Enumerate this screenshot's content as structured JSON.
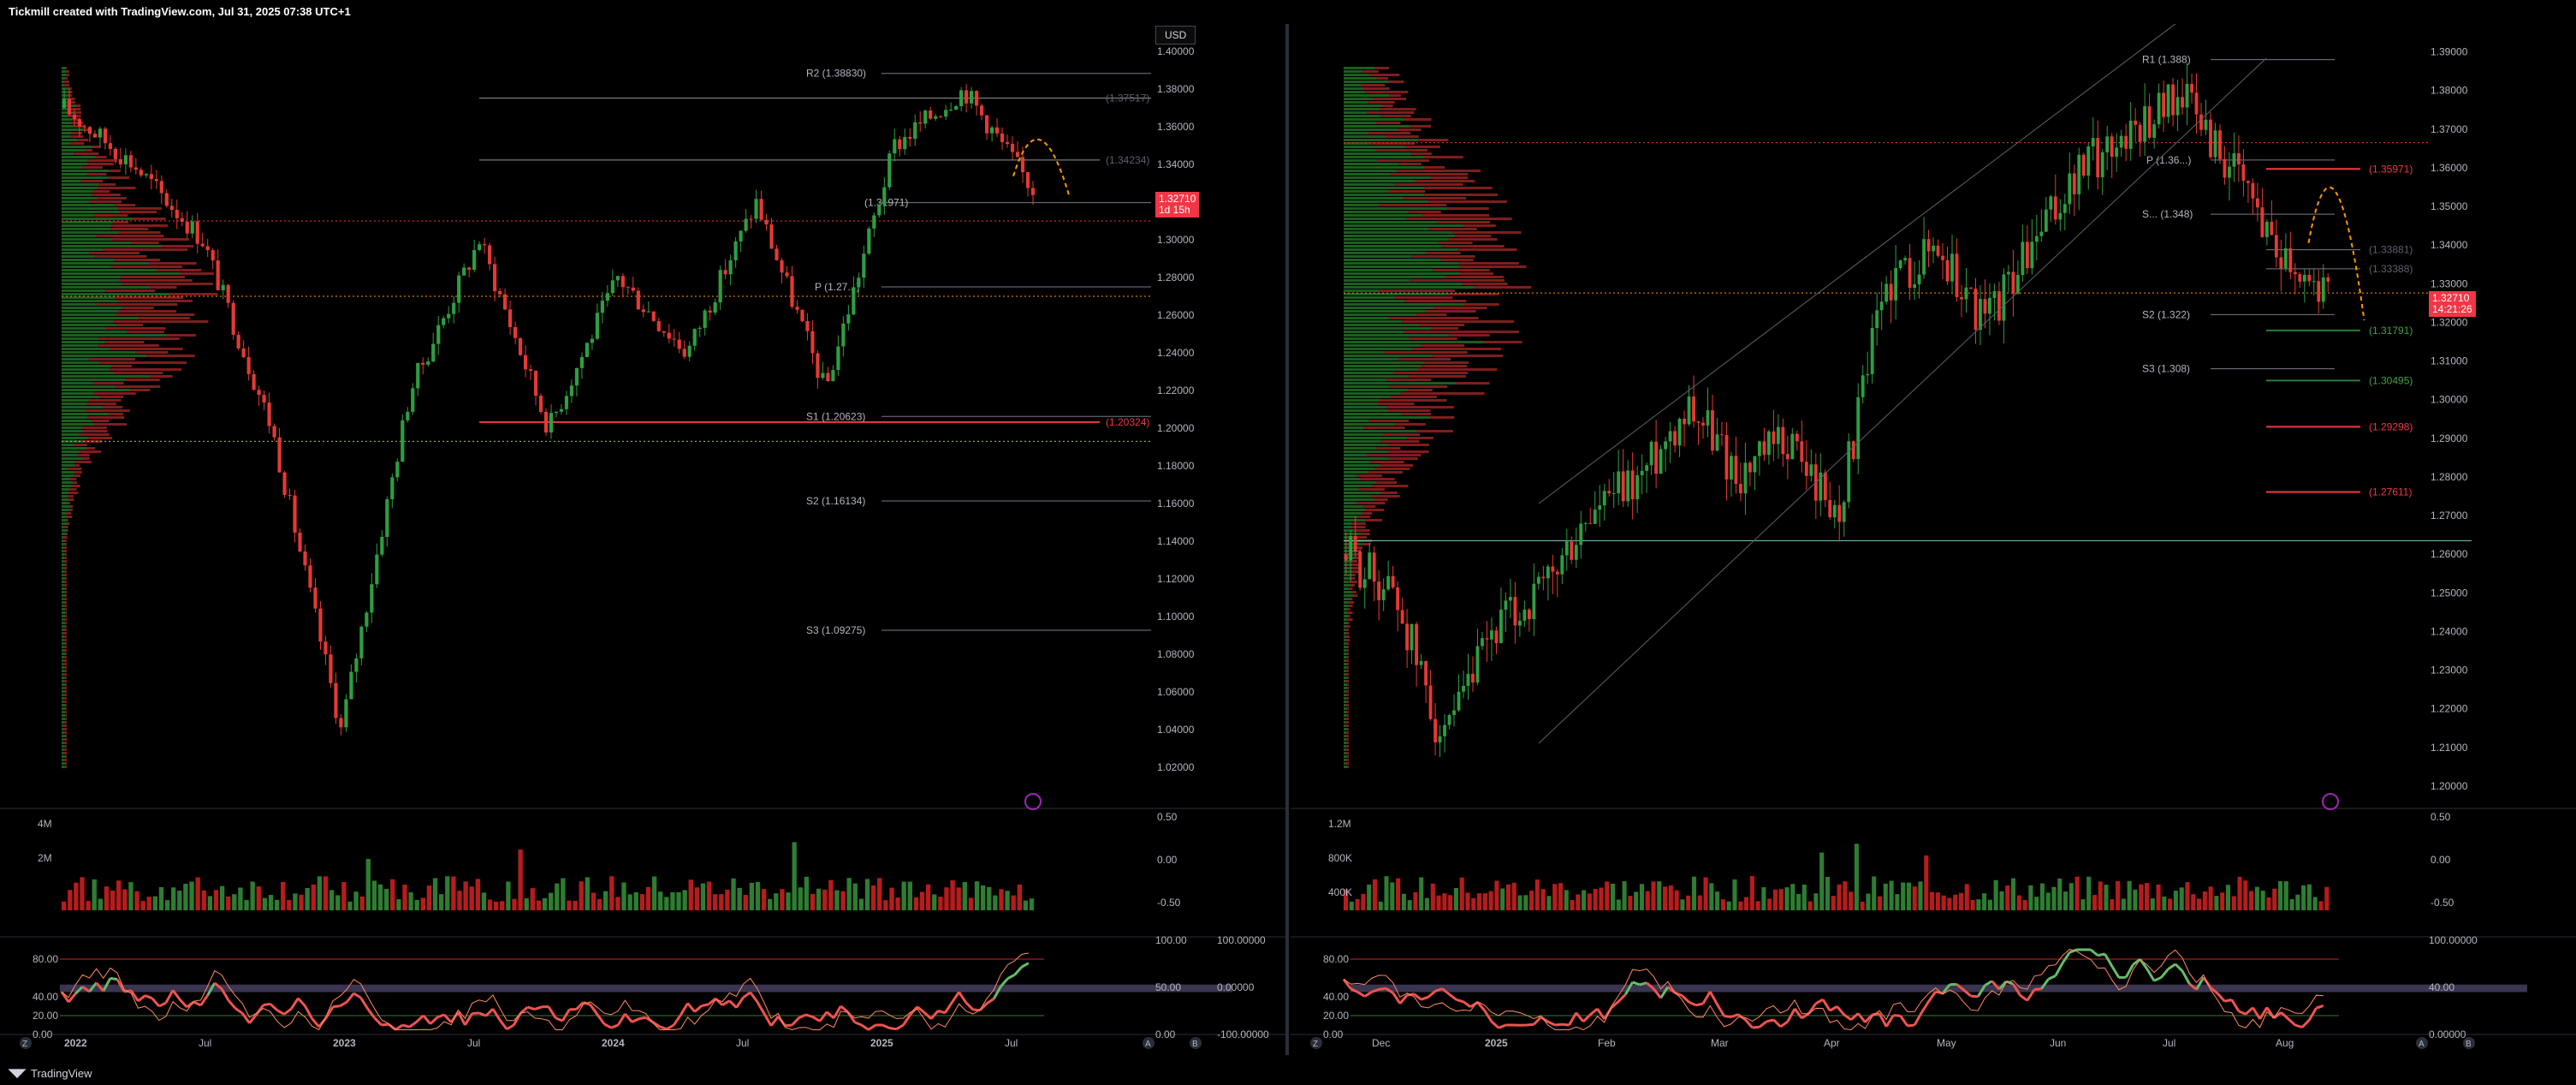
{
  "header": {
    "caption": "Tickmill created with TradingView.com, Jul 31, 2025 07:38 UTC+1"
  },
  "footer": {
    "brand": "TradingView"
  },
  "colors": {
    "up": "#26a69a",
    "upGreen": "#2e7d32",
    "down": "#c62828",
    "bg": "#000000",
    "grid": "#1a1a1a",
    "label": "#b2b5be",
    "red": "#f23645",
    "orange": "#ff9800"
  },
  "left_panel": {
    "currency_button": "USD",
    "price_tag": {
      "price": "1.32710",
      "countdown": "1d 15h"
    },
    "price_axis": [
      "1.40000",
      "1.38000",
      "1.36000",
      "1.34000",
      "1.30000",
      "1.28000",
      "1.26000",
      "1.24000",
      "1.22000",
      "1.20000",
      "1.18000",
      "1.16000",
      "1.14000",
      "1.12000",
      "1.10000",
      "1.08000",
      "1.06000",
      "1.04000",
      "1.02000"
    ],
    "pivot_labels": [
      "R2 (1.38830)",
      "(1.37517)",
      "(1.34234)",
      "P (1.27...)",
      "S1 (1.20623)",
      "(1.20324)",
      "S2 (1.16134)",
      "S3 (1.09275)"
    ],
    "r1_label_partial": "(1.31971)",
    "time_axis": [
      "2022",
      "Jul",
      "2023",
      "Jul",
      "2024",
      "Jul",
      "2025",
      "Jul"
    ],
    "volume_axis": [
      "4M",
      "2M"
    ],
    "volume_right_axis": [
      "0.50",
      "0.00",
      "-0.50"
    ],
    "osc_axis_left": [
      "80.00",
      "40.00",
      "20.00",
      "0.00"
    ],
    "osc_axis_right_a": [
      "100.00",
      "50.00",
      "0.00"
    ],
    "osc_axis_right_b": [
      "100.00000",
      "0.00000",
      "-100.00000"
    ],
    "axis_buttons": [
      "Z",
      "A",
      "B"
    ]
  },
  "right_panel": {
    "price_tag": {
      "price": "1.32710",
      "countdown": "14:21:26"
    },
    "price_axis": [
      "1.39000",
      "1.38000",
      "1.37000",
      "1.36000",
      "1.35000",
      "1.34000",
      "1.33000",
      "1.32000",
      "1.31000",
      "1.30000",
      "1.29000",
      "1.28000",
      "1.27000",
      "1.26000",
      "1.25000",
      "1.24000",
      "1.23000",
      "1.22000",
      "1.21000",
      "1.20000"
    ],
    "pivot_labels": [
      "R1 (1.388)",
      "P (1.36...)",
      "S... (1.348)",
      "S2 (1.322)",
      "S3 (1.308)"
    ],
    "right_labels": [
      "(1.35971)",
      "(1.33881)",
      "(1.33388)",
      "(1.31791)",
      "(1.30495)",
      "(1.29298)",
      "(1.27611)"
    ],
    "time_axis": [
      "Dec",
      "2025",
      "Feb",
      "Mar",
      "Apr",
      "May",
      "Jun",
      "Jul",
      "Aug"
    ],
    "volume_axis": [
      "1.2M",
      "800K",
      "400K"
    ],
    "volume_right_axis": [
      "0.50",
      "0.00",
      "-0.50"
    ],
    "osc_axis_left": [
      "80.00",
      "40.00",
      "20.00",
      "0.00"
    ],
    "osc_axis_right_a": [
      "100.00000",
      "40.00",
      "0.00000",
      "-100.00000"
    ],
    "axis_buttons": [
      "Z",
      "A",
      "B"
    ]
  },
  "chart_data": [
    {
      "type": "candlestick",
      "title": "",
      "ylim": [
        1.01,
        1.41
      ],
      "x_ticks": [
        "2022",
        "Jul",
        "2023",
        "Jul",
        "2024",
        "Jul",
        "2025",
        "Jul"
      ],
      "levels": [
        {
          "label": "R2",
          "value": 1.3883
        },
        {
          "label": "R1",
          "value": 1.31971
        },
        {
          "label": "P",
          "value": 1.275
        },
        {
          "label": "S1",
          "value": 1.20623
        },
        {
          "label": "S2",
          "value": 1.16134
        },
        {
          "label": "S3",
          "value": 1.09275
        },
        {
          "label": "high-ref",
          "value": 1.37517
        },
        {
          "label": "mid-ref",
          "value": 1.34234
        },
        {
          "label": "support-red",
          "value": 1.20324
        }
      ],
      "key_closes": [
        1.37,
        1.34,
        1.3,
        1.2,
        1.04,
        1.22,
        1.3,
        1.2,
        1.28,
        1.24,
        1.32,
        1.22,
        1.35,
        1.38,
        1.327
      ]
    },
    {
      "type": "candlestick",
      "title": "",
      "ylim": [
        1.2,
        1.395
      ],
      "x_ticks": [
        "Dec",
        "2025",
        "Feb",
        "Mar",
        "Apr",
        "May",
        "Jun",
        "Jul",
        "Aug"
      ],
      "levels": [
        {
          "label": "R1",
          "value": 1.388
        },
        {
          "label": "P",
          "value": 1.362
        },
        {
          "label": "S1",
          "value": 1.348
        },
        {
          "label": "S2",
          "value": 1.322
        },
        {
          "label": "S3",
          "value": 1.308
        }
      ],
      "key_closes": [
        1.26,
        1.25,
        1.21,
        1.24,
        1.25,
        1.27,
        1.28,
        1.3,
        1.28,
        1.29,
        1.27,
        1.33,
        1.34,
        1.32,
        1.34,
        1.36,
        1.37,
        1.38,
        1.36,
        1.34,
        1.327
      ]
    }
  ]
}
